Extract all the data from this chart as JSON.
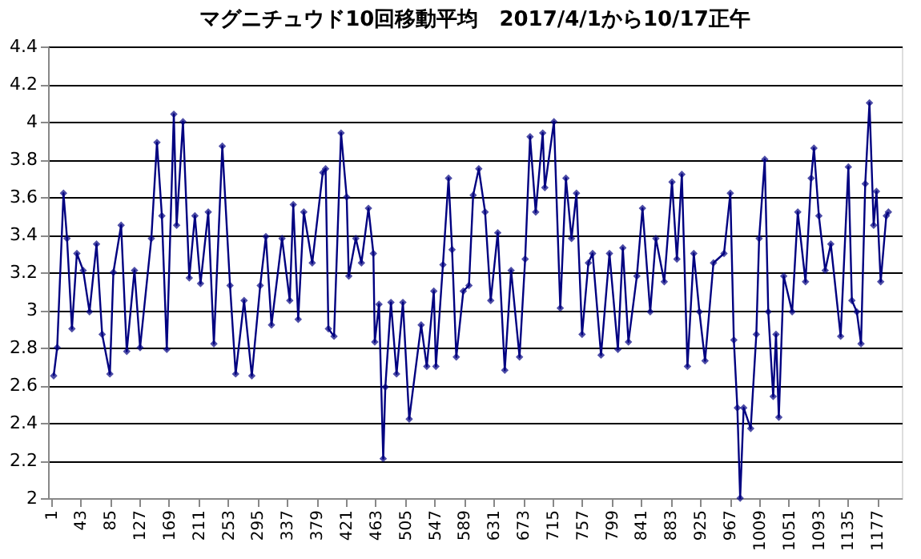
{
  "chart_data": {
    "type": "line",
    "title": "マグニチュウド10回移動平均　2017/4/1から10/17正午",
    "x": [
      5,
      10,
      19,
      24,
      31,
      38,
      47,
      56,
      66,
      74,
      85,
      90,
      101,
      109,
      120,
      128,
      144,
      152,
      159,
      166,
      176,
      180,
      189,
      198,
      206,
      214,
      225,
      233,
      245,
      256,
      264,
      276,
      287,
      299,
      307,
      315,
      330,
      341,
      346,
      353,
      361,
      373,
      388,
      392,
      396,
      404,
      414,
      422,
      425,
      435,
      443,
      453,
      460,
      462,
      468,
      474,
      477,
      485,
      493,
      502,
      511,
      528,
      536,
      546,
      549,
      559,
      567,
      572,
      578,
      588,
      596,
      602,
      610,
      619,
      627,
      637,
      647,
      656,
      668,
      676,
      683,
      691,
      701,
      704,
      717,
      726,
      734,
      742,
      749,
      757,
      766,
      772,
      784,
      796,
      808,
      815,
      823,
      835,
      843,
      854,
      862,
      874,
      885,
      892,
      899,
      907,
      916,
      924,
      932,
      944,
      959,
      968,
      973,
      978,
      982,
      987,
      997,
      1005,
      1009,
      1017,
      1022,
      1029,
      1033,
      1037,
      1044,
      1056,
      1064,
      1075,
      1083,
      1087,
      1094,
      1103,
      1111,
      1125,
      1136,
      1141,
      1148,
      1154,
      1160,
      1166,
      1172,
      1176,
      1182,
      1190,
      1193
    ],
    "series": [
      {
        "color": "#000080",
        "values": [
          2.65,
          2.8,
          3.62,
          3.38,
          2.9,
          3.3,
          3.21,
          2.99,
          3.35,
          2.87,
          2.66,
          3.2,
          3.45,
          2.78,
          3.21,
          2.8,
          3.38,
          3.89,
          3.5,
          2.79,
          4.04,
          3.45,
          4.0,
          3.17,
          3.5,
          3.14,
          3.52,
          2.82,
          3.87,
          3.13,
          2.66,
          3.05,
          2.65,
          3.13,
          3.39,
          2.92,
          3.38,
          3.05,
          3.56,
          2.95,
          3.52,
          3.25,
          3.73,
          3.75,
          2.9,
          2.86,
          3.94,
          3.6,
          3.18,
          3.38,
          3.25,
          3.54,
          3.3,
          2.83,
          3.03,
          2.21,
          2.59,
          3.04,
          2.66,
          3.04,
          2.42,
          2.92,
          2.7,
          3.1,
          2.7,
          3.24,
          3.7,
          3.32,
          2.75,
          3.1,
          3.13,
          3.61,
          3.75,
          3.52,
          3.05,
          3.41,
          2.68,
          3.21,
          2.75,
          3.27,
          3.92,
          3.52,
          3.94,
          3.65,
          4.0,
          3.01,
          3.7,
          3.38,
          3.62,
          2.87,
          3.25,
          3.3,
          2.76,
          3.3,
          2.79,
          3.33,
          2.83,
          3.18,
          3.54,
          2.99,
          3.38,
          3.15,
          3.68,
          3.27,
          3.72,
          2.7,
          3.3,
          2.99,
          2.73,
          3.25,
          3.3,
          3.62,
          2.84,
          2.48,
          2.0,
          2.48,
          2.37,
          2.87,
          3.38,
          3.8,
          2.99,
          2.54,
          2.87,
          2.43,
          3.18,
          2.99,
          3.52,
          3.15,
          3.7,
          3.86,
          3.5,
          3.21,
          3.35,
          2.86,
          3.76,
          3.05,
          2.99,
          2.82,
          3.67,
          4.1,
          3.45,
          3.63,
          3.15,
          3.5,
          3.52
        ]
      }
    ],
    "xlim": [
      -3,
      1212
    ],
    "xticks": [
      1,
      43,
      85,
      127,
      169,
      211,
      253,
      295,
      337,
      379,
      421,
      463,
      505,
      547,
      589,
      631,
      673,
      715,
      757,
      799,
      841,
      883,
      925,
      967,
      1009,
      1051,
      1093,
      1135,
      1177
    ],
    "ylim": [
      2,
      4.4
    ],
    "yticks": [
      2,
      2.2,
      2.4,
      2.6,
      2.8,
      3,
      3.2,
      3.4,
      3.6,
      3.8,
      4,
      4.2,
      4.4
    ],
    "grid": "y",
    "legend": false,
    "marker": "diamond",
    "line_style": "solid"
  }
}
